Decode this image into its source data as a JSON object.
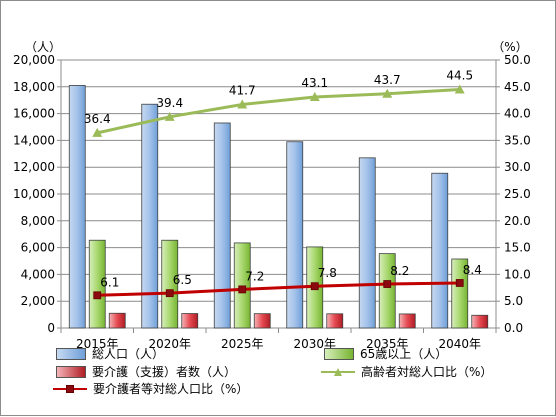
{
  "chart_data": {
    "type": "bar",
    "categories": [
      "2015年",
      "2020年",
      "2025年",
      "2030年",
      "2035年",
      "2040年"
    ],
    "left_axis": {
      "unit_label": "（人）",
      "ylim": [
        0,
        20000
      ],
      "ticks": [
        "0",
        "2,000",
        "4,000",
        "6,000",
        "8,000",
        "10,000",
        "12,000",
        "14,000",
        "16,000",
        "18,000",
        "20,000"
      ]
    },
    "right_axis": {
      "unit_label": "（%）",
      "ylim": [
        0,
        50
      ],
      "ticks": [
        "0.0",
        "5.0",
        "10.0",
        "15.0",
        "20.0",
        "25.0",
        "30.0",
        "35.0",
        "40.0",
        "45.0",
        "50.0"
      ]
    },
    "series": [
      {
        "name": "総人口（人）",
        "kind": "bar",
        "axis": "left",
        "color": "#8eb4e3",
        "values": [
          18100,
          16700,
          15300,
          13900,
          12700,
          11550
        ]
      },
      {
        "name": "65歳以上（人）",
        "kind": "bar",
        "axis": "left",
        "color": "#92d050",
        "values": [
          6550,
          6550,
          6350,
          6050,
          5550,
          5150
        ]
      },
      {
        "name": "要介護（支援）者数（人）",
        "kind": "bar",
        "axis": "left",
        "color": "#e0303a",
        "values": [
          1100,
          1080,
          1070,
          1060,
          1050,
          950
        ]
      },
      {
        "name": "高齢者対総人口比（%）",
        "kind": "line",
        "axis": "right",
        "color": "#9bbb59",
        "marker": "triangle",
        "values": [
          36.4,
          39.4,
          41.7,
          43.1,
          43.7,
          44.5
        ],
        "labels": [
          "36.4",
          "39.4",
          "41.7",
          "43.1",
          "43.7",
          "44.5"
        ]
      },
      {
        "name": "要介護者等対総人口比（%）",
        "kind": "line",
        "axis": "right",
        "color": "#c00000",
        "marker": "square",
        "values": [
          6.1,
          6.5,
          7.2,
          7.8,
          8.2,
          8.4
        ],
        "labels": [
          "6.1",
          "6.5",
          "7.2",
          "7.8",
          "8.2",
          "8.4"
        ]
      }
    ],
    "grid": true,
    "legend_position": "bottom"
  }
}
